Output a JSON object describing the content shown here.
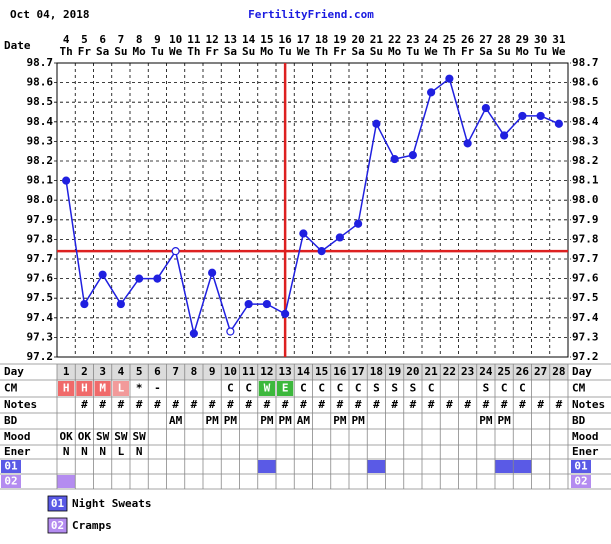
{
  "chart_data": {
    "type": "line",
    "header_date": "Oct 04, 2018",
    "site": "FertilityFriend.com",
    "date_label": "Date",
    "day_label": "Day",
    "dates": [
      4,
      5,
      6,
      7,
      8,
      9,
      10,
      11,
      12,
      13,
      14,
      15,
      16,
      17,
      18,
      19,
      20,
      21,
      22,
      23,
      24,
      25,
      26,
      27,
      28,
      29,
      30,
      31
    ],
    "weekdays": [
      "Th",
      "Fr",
      "Sa",
      "Su",
      "Mo",
      "Tu",
      "We",
      "Th",
      "Fr",
      "Sa",
      "Su",
      "Mo",
      "Tu",
      "We",
      "Th",
      "Fr",
      "Sa",
      "Su",
      "Mo",
      "Tu",
      "We",
      "Th",
      "Fr",
      "Sa",
      "Su",
      "Mo",
      "Tu",
      "We"
    ],
    "days": [
      1,
      2,
      3,
      4,
      5,
      6,
      7,
      8,
      9,
      10,
      11,
      12,
      13,
      14,
      15,
      16,
      17,
      18,
      19,
      20,
      21,
      22,
      23,
      24,
      25,
      26,
      27,
      28
    ],
    "values": [
      98.1,
      97.47,
      97.62,
      97.47,
      97.6,
      97.6,
      97.74,
      97.32,
      97.63,
      97.33,
      97.47,
      97.47,
      97.42,
      97.83,
      97.74,
      97.81,
      97.88,
      98.39,
      98.21,
      98.23,
      98.55,
      98.62,
      98.29,
      98.47,
      98.33,
      98.43,
      98.43,
      98.39
    ],
    "open_circle_days": [
      7,
      10
    ],
    "color": "#2020e0",
    "ylim": [
      97.2,
      98.7
    ],
    "yticks": [
      97.2,
      97.3,
      97.4,
      97.5,
      97.6,
      97.7,
      97.8,
      97.9,
      {
        "value": 98,
        "label": "98.0"
      },
      98.1,
      98.2,
      98.3,
      98.4,
      98.5,
      98.6,
      98.7
    ],
    "grid": true,
    "coverline": 97.74,
    "ovulation_day": 13,
    "line_marker_color": "#dd2020",
    "rows": [
      {
        "label": "CM",
        "values": [
          "H",
          "H",
          "M",
          "L",
          "*",
          "-",
          null,
          null,
          null,
          "C",
          "C",
          "W",
          "E",
          "C",
          "C",
          "C",
          "C",
          "S",
          "S",
          "S",
          "C",
          null,
          null,
          "S",
          "C",
          "C",
          null,
          null
        ]
      },
      {
        "label": "Notes",
        "values": [
          null,
          "#",
          "#",
          "#",
          "#",
          "#",
          "#",
          "#",
          "#",
          "#",
          "#",
          "#",
          "#",
          "#",
          "#",
          "#",
          "#",
          "#",
          "#",
          "#",
          "#",
          "#",
          "#",
          "#",
          "#",
          "#",
          "#",
          "#"
        ]
      },
      {
        "label": "BD",
        "values": [
          null,
          null,
          null,
          null,
          null,
          null,
          "AM",
          null,
          "PM",
          "PM",
          null,
          "PM",
          "PM",
          "AM",
          null,
          "PM",
          "PM",
          null,
          null,
          null,
          null,
          null,
          null,
          "PM",
          "PM",
          null,
          null,
          null
        ]
      },
      {
        "label": "Mood",
        "values": [
          "OK",
          "OK",
          "SW",
          "SW",
          "SW",
          null,
          null,
          null,
          null,
          null,
          null,
          null,
          null,
          null,
          null,
          null,
          null,
          null,
          null,
          null,
          null,
          null,
          null,
          null,
          null,
          null,
          null,
          null
        ]
      },
      {
        "label": "Ener",
        "values": [
          "N",
          "N",
          "N",
          "L",
          "N",
          null,
          null,
          null,
          null,
          null,
          null,
          null,
          null,
          null,
          null,
          null,
          null,
          null,
          null,
          null,
          null,
          null,
          null,
          null,
          null,
          null,
          null,
          null
        ]
      }
    ],
    "cm_colors": {
      "H": "#f06a6a",
      "M": "#f06a6a",
      "L": "#f29a9a",
      "W": "#3cb83c",
      "E": "#3cb83c"
    },
    "symptoms": [
      {
        "code": "01",
        "name": "Night Sweats",
        "color": "#5a5ae6",
        "days": [
          12,
          18,
          25,
          26
        ]
      },
      {
        "code": "02",
        "name": "Cramps",
        "color": "#b48cf0",
        "days": [
          1
        ]
      }
    ]
  }
}
